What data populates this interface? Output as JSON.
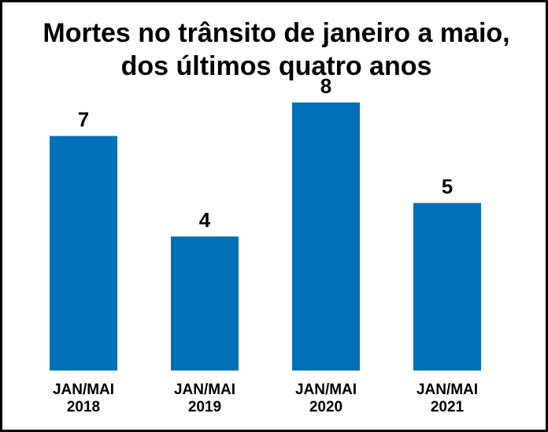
{
  "chart_data": {
    "type": "bar",
    "title_lines": [
      "Mortes no trânsito de janeiro a maio,",
      "dos últimos quatro anos"
    ],
    "categories": [
      [
        "JAN/MAI",
        "2018"
      ],
      [
        "JAN/MAI",
        "2019"
      ],
      [
        "JAN/MAI",
        "2020"
      ],
      [
        "JAN/MAI",
        "2021"
      ]
    ],
    "values": [
      7,
      4,
      8,
      5
    ],
    "data_labels": [
      "7",
      "4",
      "8",
      "5"
    ],
    "bar_color": "#0070b8",
    "grid": false,
    "legend": "none",
    "ylim": [
      0,
      8
    ]
  }
}
